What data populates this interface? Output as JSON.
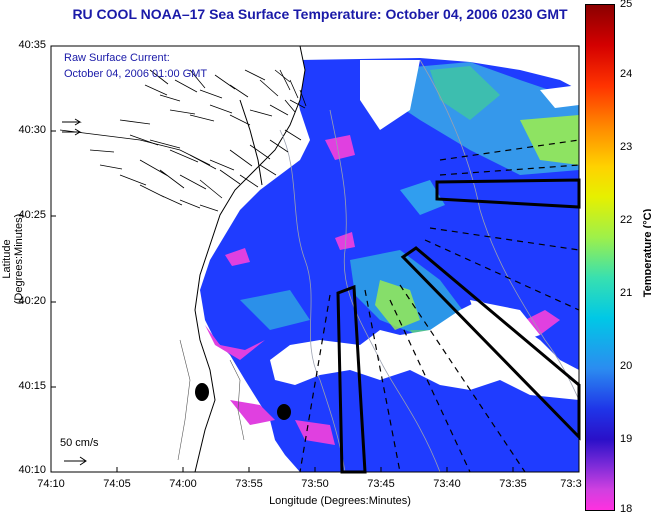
{
  "title": "RU COOL  NOAA–17  Sea Surface Temperature:  October 04, 2006 0230 GMT",
  "notes": {
    "line1": "Raw Surface Current:",
    "line2": "October 04, 2006 01:00 GMT"
  },
  "axes": {
    "xlabel": "Longitude (Degrees:Minutes)",
    "ylabel": "Latitude (Degrees:Minutes)",
    "xticks": [
      "74:10",
      "74:05",
      "74:00",
      "73:55",
      "73:50",
      "73:45",
      "73:40",
      "73:35",
      "73:3"
    ],
    "yticks": [
      "40:35",
      "40:30",
      "40:25",
      "40:20",
      "40:15",
      "40:10"
    ]
  },
  "scale": {
    "label": "50 cm/s"
  },
  "colorbar": {
    "label": "Temperature (°C)",
    "ticks": [
      "25",
      "24",
      "23",
      "22",
      "21",
      "20",
      "19",
      "18"
    ],
    "range": [
      18,
      25
    ]
  },
  "colors": {
    "title": "#1a1aa8",
    "water_warm": "#1f3cff",
    "water_cool": "#2a60ff",
    "cloud": "#ffffff",
    "land": "#ffffff"
  }
}
